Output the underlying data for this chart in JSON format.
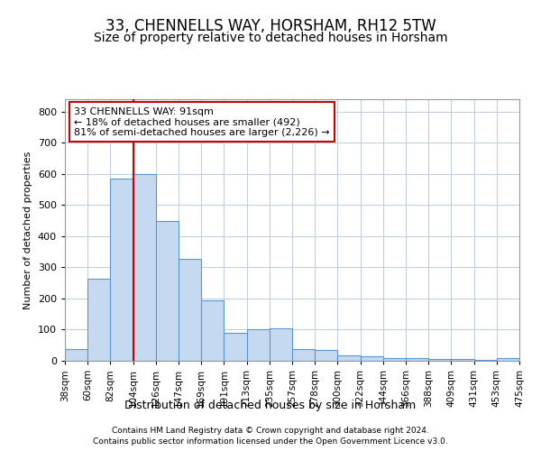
{
  "title1": "33, CHENNELLS WAY, HORSHAM, RH12 5TW",
  "title2": "Size of property relative to detached houses in Horsham",
  "xlabel": "Distribution of detached houses by size in Horsham",
  "ylabel": "Number of detached properties",
  "bin_labels": [
    "38sqm",
    "60sqm",
    "82sqm",
    "104sqm",
    "126sqm",
    "147sqm",
    "169sqm",
    "191sqm",
    "213sqm",
    "235sqm",
    "257sqm",
    "278sqm",
    "300sqm",
    "322sqm",
    "344sqm",
    "366sqm",
    "388sqm",
    "409sqm",
    "431sqm",
    "453sqm",
    "475sqm"
  ],
  "bar_heights": [
    38,
    265,
    585,
    600,
    450,
    328,
    195,
    90,
    100,
    105,
    38,
    35,
    18,
    15,
    10,
    10,
    5,
    5,
    3,
    8
  ],
  "bar_color": "#c5d9f0",
  "bar_edge_color": "#5a96d0",
  "property_line_color": "#cc0000",
  "ylim": [
    0,
    840
  ],
  "annotation_text": "33 CHENNELLS WAY: 91sqm\n← 18% of detached houses are smaller (492)\n81% of semi-detached houses are larger (2,226) →",
  "annotation_box_color": "#cc0000",
  "footnote1": "Contains HM Land Registry data © Crown copyright and database right 2024.",
  "footnote2": "Contains public sector information licensed under the Open Government Licence v3.0.",
  "background_color": "#ffffff",
  "grid_color": "#c0d0e0",
  "title1_fontsize": 12,
  "title2_fontsize": 10
}
